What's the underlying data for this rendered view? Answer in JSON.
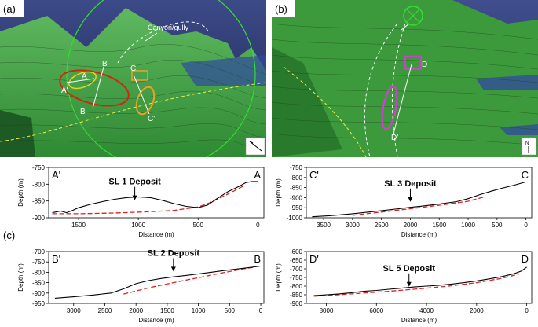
{
  "panels": {
    "a": {
      "label": "(a)",
      "annotation": "Canyon/gully",
      "markers": [
        "A",
        "A'",
        "B",
        "B'",
        "C",
        "C'"
      ]
    },
    "b": {
      "label": "(b)",
      "markers": [
        "D",
        "D'"
      ],
      "north": "N"
    },
    "c": {
      "label": "(c)"
    }
  },
  "profiles": [
    {
      "id": "sl1",
      "start_label": "A'",
      "end_label": "A",
      "deposit_label": "SL 1 Deposit",
      "xlabel": "Distance (m)",
      "ylabel": "Depth (m)",
      "xlim": [
        1750,
        -50
      ],
      "ylim": [
        -900,
        -750
      ],
      "xticks": [
        1500,
        1000,
        500,
        0
      ],
      "yticks": [
        -750,
        -800,
        -850,
        -900
      ],
      "arrow_at": [
        1030,
        -850
      ],
      "profile": [
        [
          1720,
          -885
        ],
        [
          1650,
          -880
        ],
        [
          1600,
          -885
        ],
        [
          1550,
          -878
        ],
        [
          1500,
          -870
        ],
        [
          1400,
          -860
        ],
        [
          1300,
          -852
        ],
        [
          1200,
          -845
        ],
        [
          1100,
          -840
        ],
        [
          1000,
          -838
        ],
        [
          900,
          -840
        ],
        [
          800,
          -848
        ],
        [
          700,
          -858
        ],
        [
          600,
          -866
        ],
        [
          500,
          -870
        ],
        [
          420,
          -862
        ],
        [
          350,
          -845
        ],
        [
          250,
          -822
        ],
        [
          150,
          -805
        ],
        [
          100,
          -795
        ],
        [
          50,
          -792
        ],
        [
          0,
          -792
        ]
      ],
      "baseline": [
        [
          1720,
          -888
        ],
        [
          1500,
          -888
        ],
        [
          1200,
          -886
        ],
        [
          900,
          -882
        ],
        [
          700,
          -878
        ],
        [
          500,
          -868
        ],
        [
          400,
          -855
        ],
        [
          300,
          -838
        ],
        [
          200,
          -820
        ],
        [
          120,
          -805
        ]
      ]
    },
    {
      "id": "sl3",
      "start_label": "C'",
      "end_label": "C",
      "deposit_label": "SL 3 Deposit",
      "xlabel": "Distance (m)",
      "ylabel": "Depth (m)",
      "xlim": [
        3800,
        -100
      ],
      "ylim": [
        -1000,
        -750
      ],
      "xticks": [
        3500,
        3000,
        2500,
        2000,
        1500,
        1000,
        500,
        0
      ],
      "yticks": [
        -750,
        -800,
        -850,
        -900,
        -950,
        -1000
      ],
      "arrow_at": [
        2000,
        -925
      ],
      "profile": [
        [
          3700,
          -995
        ],
        [
          3400,
          -990
        ],
        [
          3000,
          -980
        ],
        [
          2600,
          -968
        ],
        [
          2200,
          -955
        ],
        [
          2000,
          -948
        ],
        [
          1800,
          -942
        ],
        [
          1500,
          -932
        ],
        [
          1200,
          -920
        ],
        [
          1000,
          -905
        ],
        [
          800,
          -885
        ],
        [
          600,
          -868
        ],
        [
          400,
          -852
        ],
        [
          200,
          -838
        ],
        [
          0,
          -822
        ]
      ],
      "baseline": [
        [
          3000,
          -988
        ],
        [
          2500,
          -972
        ],
        [
          2000,
          -955
        ],
        [
          1500,
          -938
        ],
        [
          1000,
          -918
        ],
        [
          700,
          -895
        ]
      ]
    },
    {
      "id": "sl2",
      "start_label": "B'",
      "end_label": "B",
      "deposit_label": "SL 2 Deposit",
      "xlabel": "Distance (m)",
      "ylabel": "Depth (m)",
      "xlim": [
        3400,
        -50
      ],
      "ylim": [
        -950,
        -700
      ],
      "xticks": [
        3000,
        2500,
        2000,
        1500,
        1000,
        500,
        0
      ],
      "yticks": [
        -700,
        -750,
        -800,
        -850,
        -900,
        -950
      ],
      "arrow_at": [
        1400,
        -800
      ],
      "profile": [
        [
          3300,
          -925
        ],
        [
          3000,
          -918
        ],
        [
          2700,
          -910
        ],
        [
          2400,
          -900
        ],
        [
          2200,
          -880
        ],
        [
          2000,
          -855
        ],
        [
          1800,
          -840
        ],
        [
          1600,
          -830
        ],
        [
          1400,
          -822
        ],
        [
          1200,
          -815
        ],
        [
          1000,
          -808
        ],
        [
          800,
          -800
        ],
        [
          600,
          -792
        ],
        [
          400,
          -785
        ],
        [
          200,
          -778
        ],
        [
          0,
          -770
        ]
      ],
      "baseline": [
        [
          2200,
          -905
        ],
        [
          2000,
          -890
        ],
        [
          1800,
          -875
        ],
        [
          1500,
          -856
        ],
        [
          1200,
          -838
        ],
        [
          900,
          -820
        ],
        [
          600,
          -802
        ],
        [
          300,
          -785
        ],
        [
          100,
          -775
        ]
      ]
    },
    {
      "id": "sl5",
      "start_label": "D'",
      "end_label": "D",
      "deposit_label": "SL 5 Deposit",
      "xlabel": "Distance (m)",
      "ylabel": "Depth (m)",
      "xlim": [
        8800,
        -200
      ],
      "ylim": [
        -900,
        -600
      ],
      "xticks": [
        8000,
        6000,
        4000,
        2000,
        0
      ],
      "yticks": [
        -600,
        -650,
        -700,
        -750,
        -800,
        -850,
        -900
      ],
      "arrow_at": [
        4700,
        -808
      ],
      "profile": [
        [
          8500,
          -855
        ],
        [
          8000,
          -850
        ],
        [
          7500,
          -845
        ],
        [
          7000,
          -838
        ],
        [
          6500,
          -830
        ],
        [
          6000,
          -825
        ],
        [
          5500,
          -818
        ],
        [
          5000,
          -812
        ],
        [
          4500,
          -805
        ],
        [
          4000,
          -800
        ],
        [
          3500,
          -795
        ],
        [
          3000,
          -788
        ],
        [
          2500,
          -780
        ],
        [
          2000,
          -770
        ],
        [
          1500,
          -758
        ],
        [
          1000,
          -745
        ],
        [
          500,
          -728
        ],
        [
          200,
          -712
        ],
        [
          0,
          -690
        ]
      ],
      "baseline": [
        [
          8500,
          -858
        ],
        [
          7000,
          -845
        ],
        [
          5500,
          -830
        ],
        [
          4000,
          -812
        ],
        [
          3000,
          -798
        ],
        [
          2000,
          -780
        ],
        [
          1000,
          -755
        ],
        [
          300,
          -730
        ]
      ]
    }
  ],
  "colors": {
    "profile": "#000000",
    "baseline": "#e02020",
    "terrain": "#3d9a3d",
    "sky": "#2a3466"
  }
}
